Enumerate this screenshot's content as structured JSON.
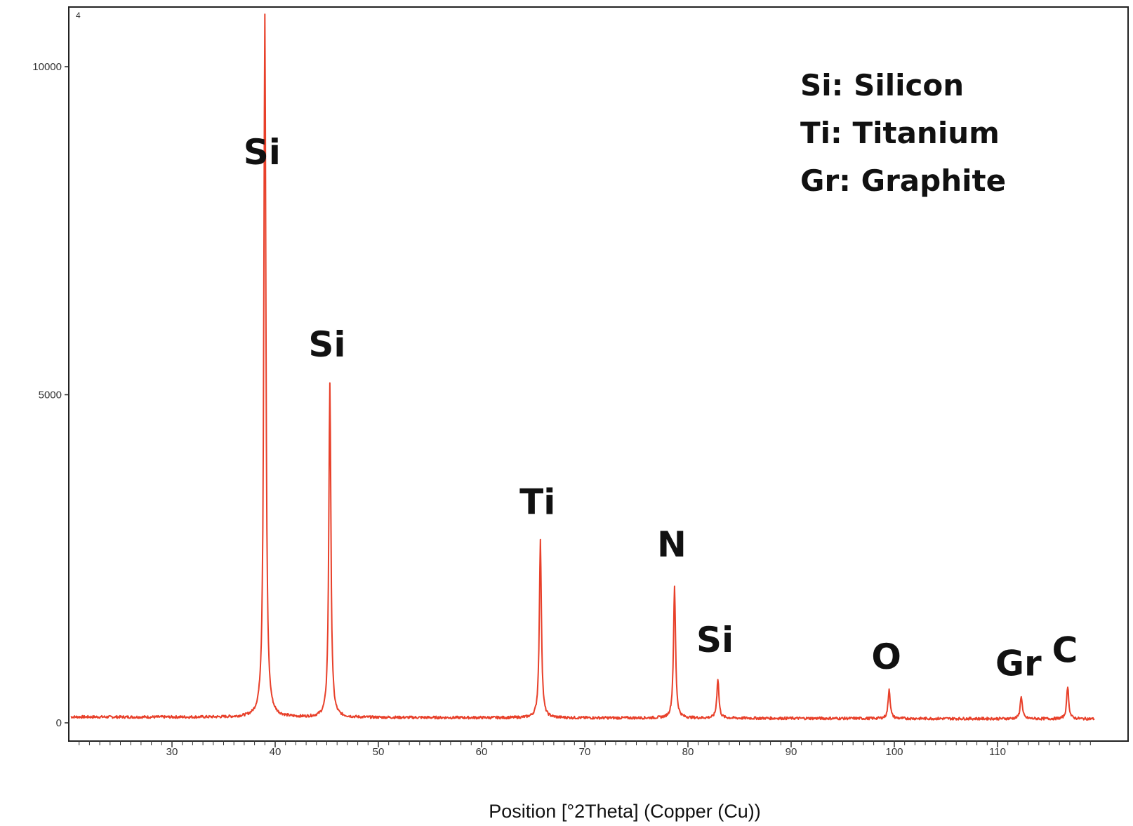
{
  "chart_data": {
    "type": "line",
    "title": "",
    "xlabel": "Position [°2Theta] (Copper (Cu))",
    "ylabel": "",
    "corner_mark": "4",
    "xlim": [
      20,
      119.5
    ],
    "ylim": [
      0,
      10800
    ],
    "x_ticks": [
      30,
      40,
      50,
      60,
      70,
      80,
      90,
      100,
      110
    ],
    "y_ticks": [
      0,
      5000,
      10000
    ],
    "grid": false,
    "series_color": "#e8402a",
    "baseline": 90,
    "peaks": [
      {
        "x": 39.0,
        "y": 10800,
        "label": "Si"
      },
      {
        "x": 45.3,
        "y": 5100,
        "label": "Si"
      },
      {
        "x": 65.7,
        "y": 2700,
        "label": "Ti"
      },
      {
        "x": 78.7,
        "y": 2000,
        "label": "N"
      },
      {
        "x": 82.9,
        "y": 600,
        "label": "Si"
      },
      {
        "x": 99.5,
        "y": 450,
        "label": "O"
      },
      {
        "x": 112.3,
        "y": 350,
        "label": "Gr"
      },
      {
        "x": 116.8,
        "y": 500,
        "label": "C"
      }
    ],
    "legend": {
      "placement": "top-right",
      "entries": [
        "Si: Silicon",
        "Ti: Titanium",
        "Gr: Graphite"
      ]
    }
  }
}
